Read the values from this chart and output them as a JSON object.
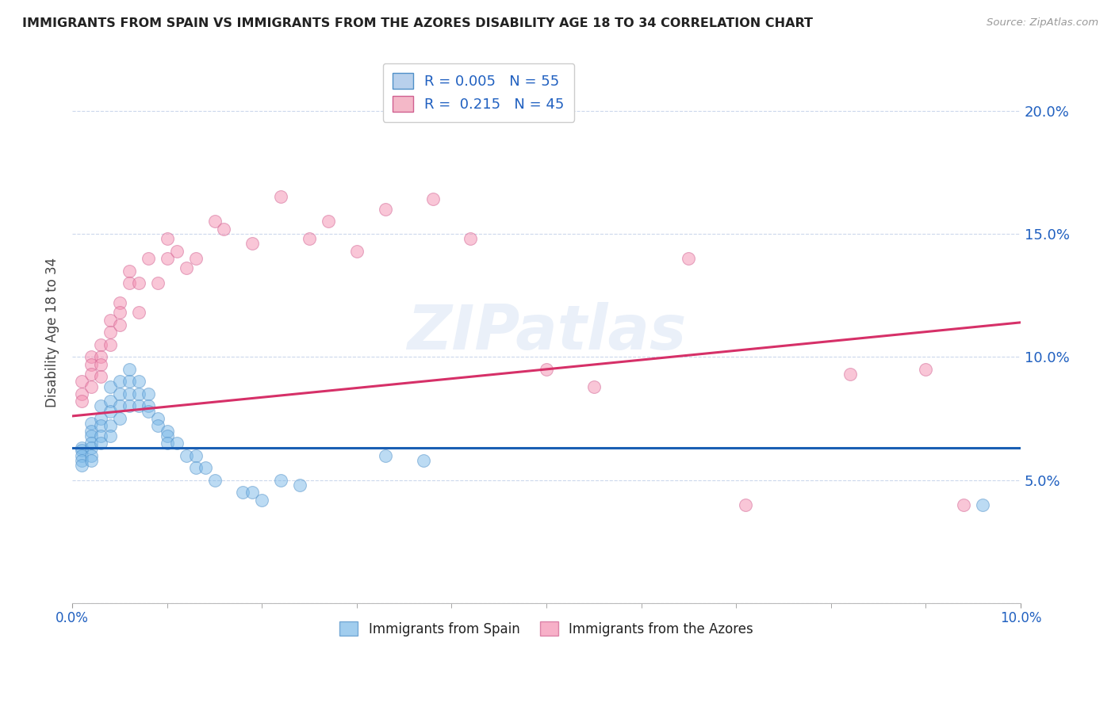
{
  "title": "IMMIGRANTS FROM SPAIN VS IMMIGRANTS FROM THE AZORES DISABILITY AGE 18 TO 34 CORRELATION CHART",
  "source": "Source: ZipAtlas.com",
  "ylabel": "Disability Age 18 to 34",
  "xlim": [
    0.0,
    0.1
  ],
  "ylim": [
    0.0,
    0.22
  ],
  "xtick_vals": [
    0.0,
    0.01,
    0.02,
    0.03,
    0.04,
    0.05,
    0.06,
    0.07,
    0.08,
    0.09,
    0.1
  ],
  "xtick_major_vals": [
    0.0,
    0.1
  ],
  "xtick_major_labels": [
    "0.0%",
    "10.0%"
  ],
  "ytick_vals": [
    0.0,
    0.05,
    0.1,
    0.15,
    0.2
  ],
  "ytick_labels": [
    "",
    "5.0%",
    "10.0%",
    "15.0%",
    "20.0%"
  ],
  "right_ytick_vals": [
    0.05,
    0.1,
    0.15,
    0.2
  ],
  "right_ytick_labels": [
    "5.0%",
    "10.0%",
    "15.0%",
    "20.0%"
  ],
  "legend1_label": "R = 0.005   N = 55",
  "legend2_label": "R =  0.215   N = 45",
  "legend1_color": "#b8d0ec",
  "legend2_color": "#f4b8c8",
  "series1_color": "#7ab8e8",
  "series2_color": "#f48fb1",
  "trendline1_color": "#1a5fb4",
  "trendline2_color": "#d63068",
  "background_color": "#ffffff",
  "grid_color": "#ccd8ec",
  "watermark": "ZIPatlas",
  "series1_x": [
    0.001,
    0.001,
    0.001,
    0.001,
    0.001,
    0.002,
    0.002,
    0.002,
    0.002,
    0.002,
    0.002,
    0.002,
    0.003,
    0.003,
    0.003,
    0.003,
    0.003,
    0.004,
    0.004,
    0.004,
    0.004,
    0.004,
    0.005,
    0.005,
    0.005,
    0.005,
    0.006,
    0.006,
    0.006,
    0.006,
    0.007,
    0.007,
    0.007,
    0.008,
    0.008,
    0.008,
    0.009,
    0.009,
    0.01,
    0.01,
    0.01,
    0.011,
    0.012,
    0.013,
    0.013,
    0.014,
    0.015,
    0.018,
    0.019,
    0.02,
    0.022,
    0.024,
    0.033,
    0.037,
    0.096
  ],
  "series1_y": [
    0.063,
    0.062,
    0.06,
    0.058,
    0.056,
    0.073,
    0.07,
    0.068,
    0.065,
    0.063,
    0.06,
    0.058,
    0.08,
    0.075,
    0.072,
    0.068,
    0.065,
    0.088,
    0.082,
    0.078,
    0.072,
    0.068,
    0.09,
    0.085,
    0.08,
    0.075,
    0.095,
    0.09,
    0.085,
    0.08,
    0.09,
    0.085,
    0.08,
    0.085,
    0.08,
    0.078,
    0.075,
    0.072,
    0.07,
    0.068,
    0.065,
    0.065,
    0.06,
    0.06,
    0.055,
    0.055,
    0.05,
    0.045,
    0.045,
    0.042,
    0.05,
    0.048,
    0.06,
    0.058,
    0.04
  ],
  "series2_x": [
    0.001,
    0.001,
    0.001,
    0.002,
    0.002,
    0.002,
    0.002,
    0.003,
    0.003,
    0.003,
    0.003,
    0.004,
    0.004,
    0.004,
    0.005,
    0.005,
    0.005,
    0.006,
    0.006,
    0.007,
    0.007,
    0.008,
    0.009,
    0.01,
    0.01,
    0.011,
    0.012,
    0.013,
    0.015,
    0.016,
    0.019,
    0.022,
    0.025,
    0.027,
    0.03,
    0.033,
    0.038,
    0.042,
    0.05,
    0.055,
    0.065,
    0.071,
    0.082,
    0.09,
    0.094
  ],
  "series2_y": [
    0.09,
    0.085,
    0.082,
    0.1,
    0.097,
    0.093,
    0.088,
    0.105,
    0.1,
    0.097,
    0.092,
    0.115,
    0.11,
    0.105,
    0.122,
    0.118,
    0.113,
    0.135,
    0.13,
    0.13,
    0.118,
    0.14,
    0.13,
    0.148,
    0.14,
    0.143,
    0.136,
    0.14,
    0.155,
    0.152,
    0.146,
    0.165,
    0.148,
    0.155,
    0.143,
    0.16,
    0.164,
    0.148,
    0.095,
    0.088,
    0.14,
    0.04,
    0.093,
    0.095,
    0.04
  ],
  "trendline1_x": [
    0.0,
    0.1
  ],
  "trendline1_y": [
    0.063,
    0.063
  ],
  "trendline2_x": [
    0.0,
    0.1
  ],
  "trendline2_y": [
    0.076,
    0.114
  ],
  "marker_size": 130,
  "marker_alpha": 0.5,
  "marker_edge_width": 0.8,
  "marker_edge_color1": "#5090c8",
  "marker_edge_color2": "#d06090"
}
